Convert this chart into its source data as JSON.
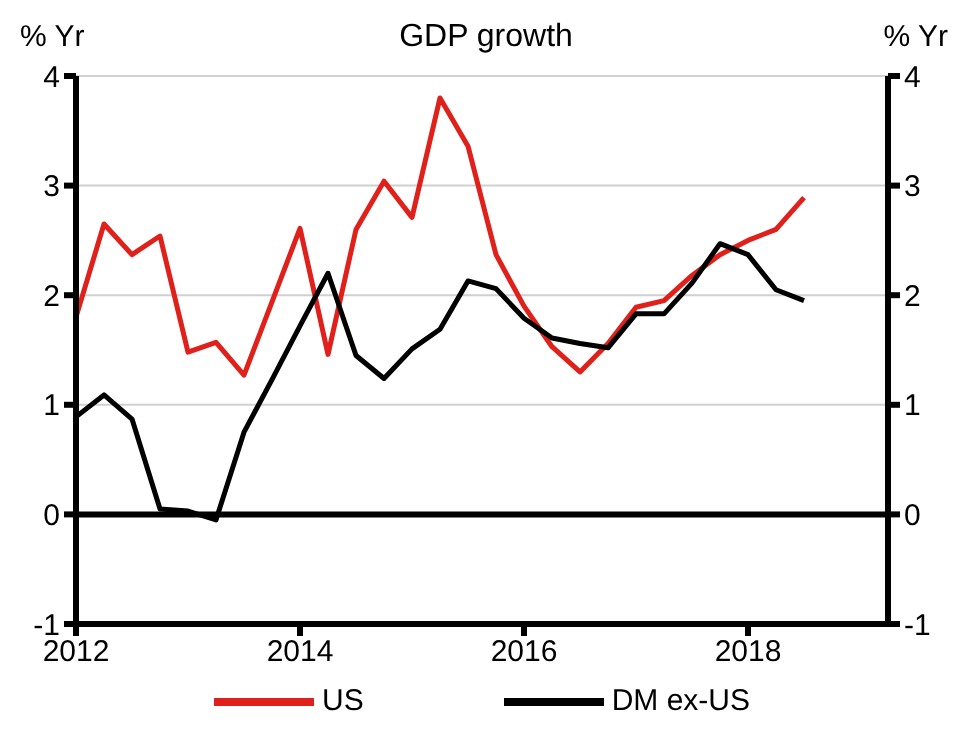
{
  "chart_data": {
    "type": "line",
    "title": "GDP growth",
    "ylabel": "% Yr",
    "y2label": "% Yr",
    "x": [
      2012,
      2012.25,
      2012.5,
      2012.75,
      2013,
      2013.25,
      2013.5,
      2013.75,
      2014,
      2014.25,
      2014.5,
      2014.75,
      2015,
      2015.25,
      2015.5,
      2015.75,
      2016,
      2016.25,
      2016.5,
      2016.75,
      2017,
      2017.25,
      2017.5,
      2017.75,
      2018,
      2018.25,
      2018.5
    ],
    "series": [
      {
        "name": "US",
        "color": "#e0201b",
        "values": [
          1.8,
          2.65,
          2.37,
          2.54,
          1.48,
          1.57,
          1.27,
          1.94,
          2.61,
          1.46,
          2.6,
          3.04,
          2.71,
          3.8,
          3.36,
          2.37,
          1.9,
          1.53,
          1.3,
          1.56,
          1.89,
          1.95,
          2.18,
          2.37,
          2.5,
          2.6,
          2.89
        ]
      },
      {
        "name": "DM ex-US",
        "color": "#000000",
        "values": [
          0.89,
          1.09,
          0.87,
          0.05,
          0.03,
          -0.05,
          0.75,
          1.23,
          1.72,
          2.2,
          1.45,
          1.24,
          1.51,
          1.69,
          2.13,
          2.06,
          1.79,
          1.61,
          1.56,
          1.52,
          1.83,
          1.83,
          2.11,
          2.47,
          2.37,
          2.05,
          1.95
        ]
      }
    ],
    "xlim": [
      2012,
      2019.25
    ],
    "xticks": [
      2012,
      2014,
      2016,
      2018
    ],
    "ylim": [
      -1,
      4
    ],
    "yticks": [
      -1,
      0,
      1,
      2,
      3,
      4
    ],
    "y2lim": [
      -1,
      4
    ],
    "y2ticks": [
      -1,
      0,
      1,
      2,
      3,
      4
    ],
    "ref_lines": [
      {
        "axis": "y",
        "value": 0,
        "color": "#000000"
      }
    ],
    "grid": "y",
    "legend": "bottom",
    "marker": "none",
    "line_style": "solid"
  }
}
